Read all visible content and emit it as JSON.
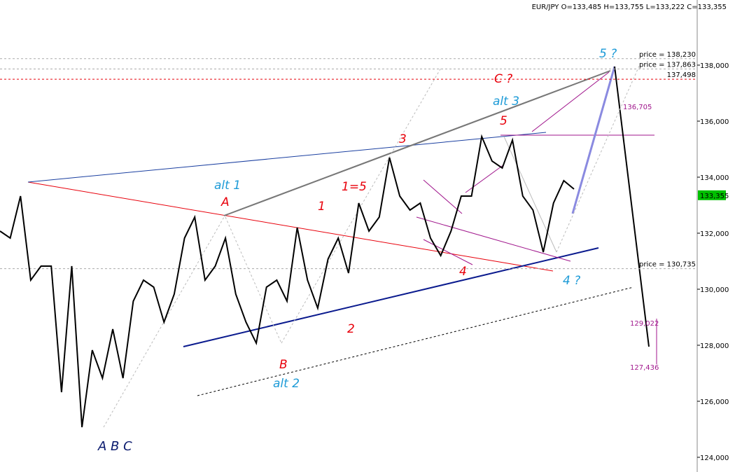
{
  "chart_data": {
    "type": "line",
    "title": "EUR/JPY O=133,485 H=133,755 L=133,222 C=133,355",
    "series": [
      {
        "name": "EUR/JPY",
        "color": "#000000",
        "values": [
          132.075,
          131.825,
          133.325,
          130.325,
          130.825,
          130.825,
          126.325,
          130.825,
          125.075,
          127.825,
          126.825,
          128.575,
          126.825,
          129.575,
          130.325,
          130.075,
          128.825,
          129.825,
          131.825,
          132.575,
          130.325,
          130.825,
          131.825,
          129.825,
          128.825,
          128.075,
          130.075,
          130.325,
          129.575,
          132.2,
          130.325,
          129.325,
          131.075,
          131.825,
          130.575,
          133.075,
          132.075,
          132.575,
          134.7,
          133.325,
          132.825,
          133.075,
          131.825,
          131.2,
          132.075,
          133.325,
          133.325,
          135.45,
          134.575,
          134.325,
          135.325,
          133.325,
          132.825,
          131.325,
          133.075,
          133.875,
          133.575
        ]
      }
    ],
    "ylim": [
      123.475,
      140.325
    ],
    "yticks": [
      {
        "value": 124,
        "label": "124,000"
      },
      {
        "value": 126,
        "label": "126,000"
      },
      {
        "value": 128,
        "label": "128,000"
      },
      {
        "value": 130,
        "label": "130,000"
      },
      {
        "value": 132,
        "label": "132,000"
      },
      {
        "value": 134,
        "label": "134,000"
      },
      {
        "value": 136,
        "label": "136,000"
      },
      {
        "value": 138,
        "label": "138,000"
      }
    ],
    "last_price": {
      "value": 133.355,
      "label": "133,355",
      "color": "#00c000"
    },
    "price_lines": [
      {
        "value": 138.23,
        "label": "price = 138,230",
        "color": "#aaaaaa"
      },
      {
        "value": 137.863,
        "label": "price = 137,863",
        "color": "#aaaaaa"
      },
      {
        "value": 137.498,
        "label": "137,498",
        "color": "#e8000b"
      },
      {
        "value": 130.735,
        "label": "price = 130,735",
        "color": "#aaaaaa"
      }
    ],
    "annotations": [
      "A B C",
      "A",
      "B",
      "alt 1",
      "alt 2",
      "1",
      "2",
      "3",
      "4",
      "5",
      "1=5",
      "C ?",
      "alt 3",
      "5 ?",
      "4 ?",
      "136,705",
      "129,022",
      "127,436"
    ]
  }
}
